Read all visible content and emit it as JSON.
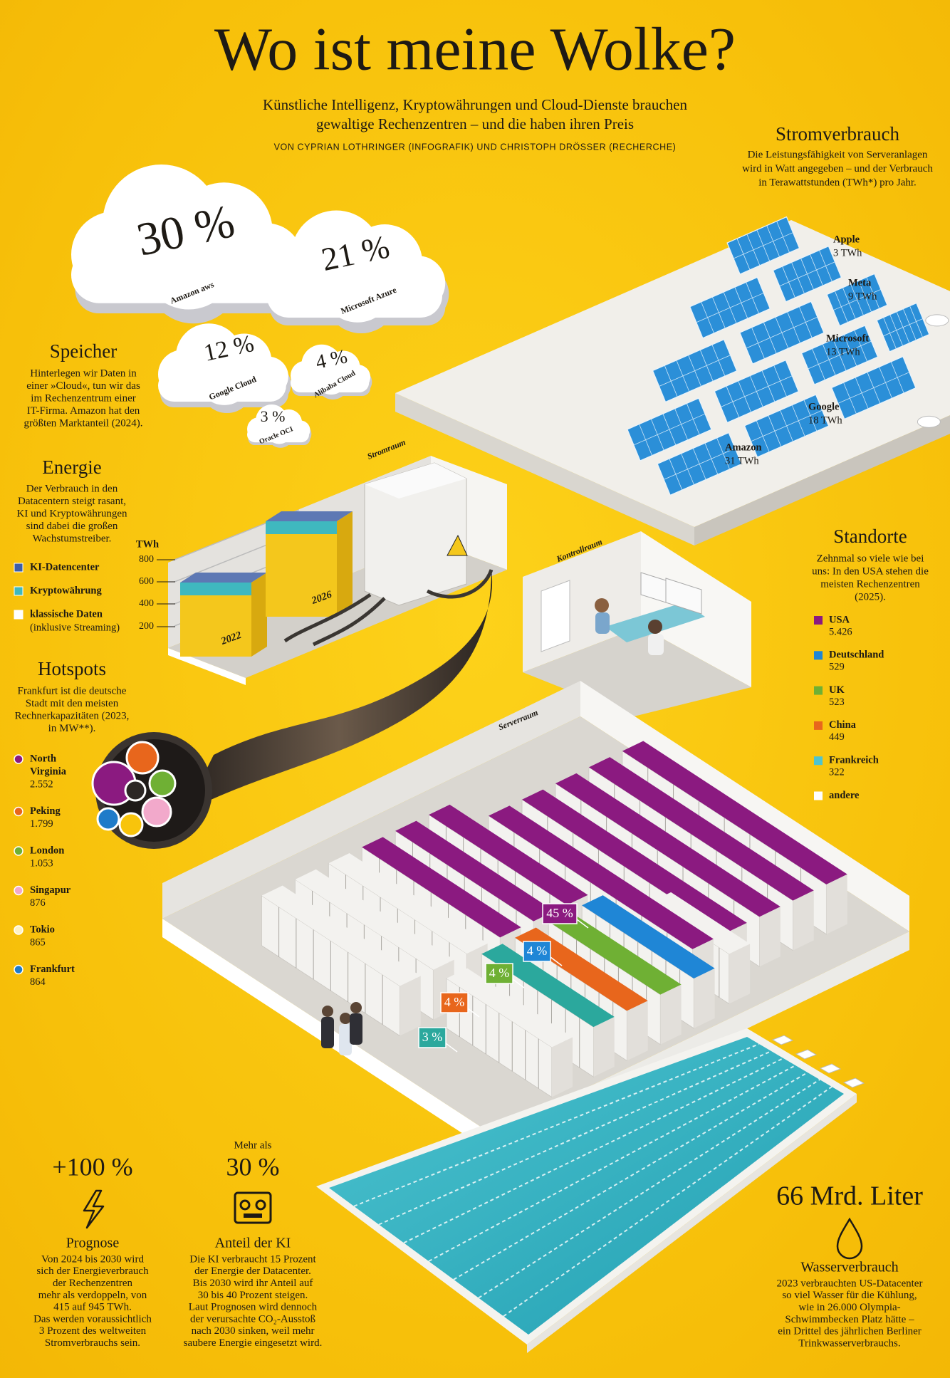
{
  "header": {
    "title": "Wo ist meine Wolke?",
    "subtitle": [
      "Künstliche Intelligenz, Kryptowährungen und Cloud-Dienste brauchen",
      "gewaltige Rechenzentren – und die haben ihren Preis"
    ],
    "byline": "VON CYPRIAN LOTHRINGER (INFOGRAFIK) UND CHRISTOPH DRÖSSER (RECHERCHE)"
  },
  "storage": {
    "heading": "Speicher",
    "text": [
      "Hinterlegen wir Daten in",
      "einer »Cloud«, tun wir das",
      "im Rechenzentrum einer",
      "IT-Firma. Amazon hat den",
      "größten Marktanteil (2024)."
    ],
    "clouds": [
      {
        "share": "30 %",
        "provider": "Amazon aws"
      },
      {
        "share": "21 %",
        "provider": "Microsoft Azure"
      },
      {
        "share": "12 %",
        "provider": "Google Cloud"
      },
      {
        "share": "4 %",
        "provider": "Alibaba Cloud"
      },
      {
        "share": "3 %",
        "provider": "Oracle OCI"
      }
    ]
  },
  "power": {
    "heading": "Stromverbrauch",
    "text": [
      "Die Leistungsfähigkeit von Serveranlagen",
      "wird in Watt angegeben – und der Verbrauch",
      "in Terawattstunden (TWh*) pro Jahr."
    ],
    "companies": [
      {
        "name": "Apple",
        "usage": "3 TWh"
      },
      {
        "name": "Meta",
        "usage": "9 TWh"
      },
      {
        "name": "Microsoft",
        "usage": "13 TWh"
      },
      {
        "name": "Google",
        "usage": "18 TWh"
      },
      {
        "name": "Amazon",
        "usage": "31 TWh"
      }
    ]
  },
  "energy": {
    "heading": "Energie",
    "text": [
      "Der Verbrauch in den",
      "Datacentern steigt rasant,",
      "KI und Kryptowährungen",
      "sind dabei die großen",
      "Wachstumstreiber."
    ],
    "legend": [
      "KI-Datencenter",
      "Kryptowährung",
      "klassische Daten"
    ],
    "legend_note": "(inklusive Streaming)",
    "unit": "TWh",
    "ticks": [
      800,
      600,
      400,
      200
    ],
    "years": [
      "2022",
      "2026"
    ]
  },
  "rooms": {
    "power_room": "Stromraum",
    "control_room": "Kontrollraum",
    "server_room": "Serverraum"
  },
  "hotspots": {
    "heading": "Hotspots",
    "text": [
      "Frankfurt ist die deutsche",
      "Stadt mit den meisten",
      "Rechnerkapazitäten (2023,",
      "in MW**)."
    ],
    "items": [
      {
        "name": [
          "North",
          "Virginia"
        ],
        "value": "2.552"
      },
      {
        "name": [
          "Peking"
        ],
        "value": "1.799"
      },
      {
        "name": [
          "London"
        ],
        "value": "1.053"
      },
      {
        "name": [
          "Singapur"
        ],
        "value": "876"
      },
      {
        "name": [
          "Tokio"
        ],
        "value": "865"
      },
      {
        "name": [
          "Frankfurt"
        ],
        "value": "864"
      }
    ]
  },
  "locations": {
    "heading": "Standorte",
    "text": [
      "Zehnmal so viele wie bei",
      "uns: In den USA stehen die",
      "meisten Rechenzentren",
      "(2025)."
    ],
    "items": [
      {
        "name": "USA",
        "value": "5.426"
      },
      {
        "name": "Deutschland",
        "value": "529"
      },
      {
        "name": "UK",
        "value": "523"
      },
      {
        "name": "China",
        "value": "449"
      },
      {
        "name": "Frankreich",
        "value": "322"
      },
      {
        "name": "andere"
      }
    ]
  },
  "server_shares": [
    "45 %",
    "4 %",
    "4 %",
    "4 %",
    "3 %"
  ],
  "forecast": {
    "value": "+100 %",
    "heading": "Prognose",
    "text": [
      "Von 2024 bis 2030 wird",
      "sich der Energieverbrauch",
      "der Rechenzentren",
      "mehr als verdoppeln, von",
      "415 auf 945 TWh.",
      "Das werden voraussichtlich",
      "3 Prozent des weltweiten",
      "Stromverbrauchs sein."
    ]
  },
  "ai": {
    "prefix": "Mehr als",
    "value": "30 %",
    "heading": "Anteil der KI",
    "text": [
      "Die KI verbraucht 15 Prozent",
      "der Energie der Datacenter.",
      "Bis 2030 wird ihr Anteil auf",
      "30 bis 40 Prozent steigen.",
      "Laut Prognosen wird dennoch",
      "der verursachte CO₂-Ausstoß",
      "nach 2030 sinken, weil mehr",
      "saubere Energie eingesetzt wird."
    ]
  },
  "water": {
    "value": "66 Mrd. Liter",
    "heading": "Wasserverbrauch",
    "text": [
      "2023 verbrauchten US-Datacenter",
      "so viel Wasser für die Kühlung,",
      "wie in 26.000 Olympia-",
      "Schwimmbecken Platz hätte –",
      "ein Drittel des jährlichen Berliner",
      "Trinkwasserverbrauchs."
    ]
  }
}
